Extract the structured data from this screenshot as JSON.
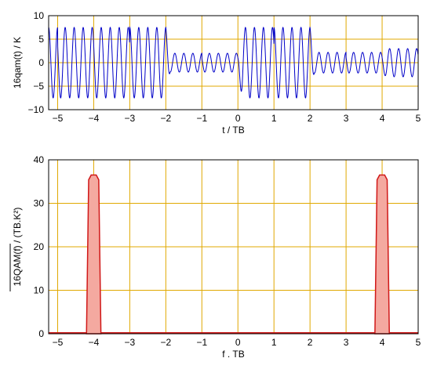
{
  "colors": {
    "grid": "#e0a800",
    "signal": "#0000c8",
    "spectrum_fill": "#f4a9a0",
    "spectrum_line": "#d01818",
    "axis": "#000000"
  },
  "chart_data": [
    {
      "type": "line",
      "title": "",
      "xlabel": "t / TB",
      "ylabel": "16qam(t) / K",
      "xlim": [
        -5.25,
        5
      ],
      "ylim": [
        -10,
        10
      ],
      "xticks": [
        -5,
        -4,
        -3,
        -2,
        -1,
        0,
        1,
        2,
        3,
        4,
        5
      ],
      "yticks": [
        -10,
        -5,
        0,
        5,
        10
      ],
      "grid": true,
      "carrier_frequency_per_TB": 4,
      "symbol_period_TB": 2,
      "symbols": [
        {
          "t_start": -5.25,
          "t_end": -4,
          "amplitude": 7.5
        },
        {
          "t_start": -4,
          "t_end": -2,
          "amplitude": 7.5
        },
        {
          "t_start": -2,
          "t_end": 0,
          "amplitude": 2.0
        },
        {
          "t_start": 0,
          "t_end": 2,
          "amplitude": 7.5
        },
        {
          "t_start": 2,
          "t_end": 4,
          "amplitude": 2.2
        },
        {
          "t_start": 4,
          "t_end": 5,
          "amplitude": 3.0
        }
      ]
    },
    {
      "type": "area",
      "title": "",
      "xlabel": "f . TB",
      "ylabel": "16QAM(f) / (TB.K²)",
      "xlim": [
        -5.25,
        5
      ],
      "ylim": [
        0,
        40
      ],
      "xticks": [
        -5,
        -4,
        -3,
        -2,
        -1,
        0,
        1,
        2,
        3,
        4,
        5
      ],
      "yticks": [
        0,
        10,
        20,
        30,
        40
      ],
      "grid": true,
      "peaks": [
        {
          "center_f": -4,
          "height": 36.5,
          "half_width": 0.2
        },
        {
          "center_f": 4,
          "height": 36.5,
          "half_width": 0.2
        }
      ]
    }
  ]
}
